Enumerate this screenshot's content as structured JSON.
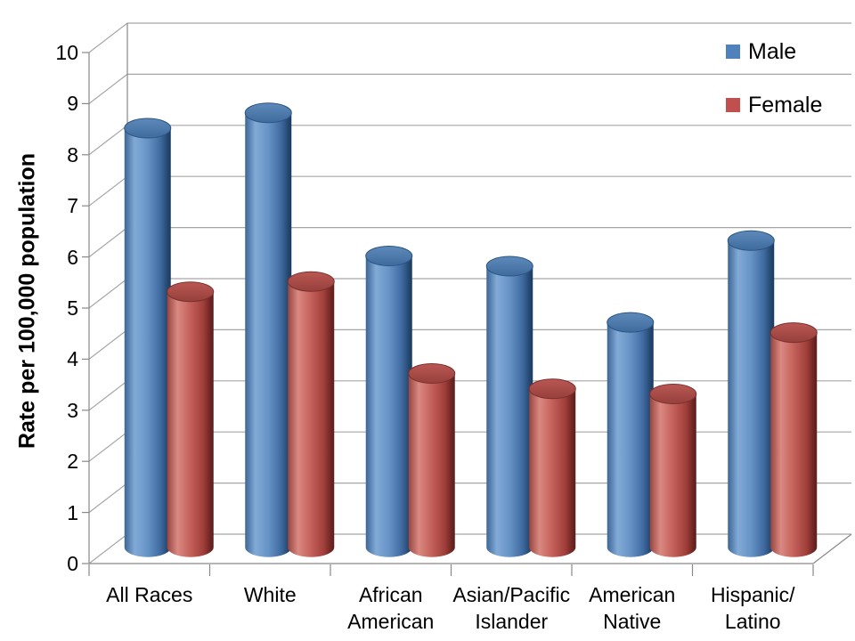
{
  "chart_data": {
    "type": "bar",
    "subtype": "3d-cylinder-clustered",
    "title": "",
    "ylabel": "Rate per 100,000 population",
    "xlabel": "",
    "ylim": [
      0,
      10
    ],
    "ytick_step": 1,
    "yticks": [
      "0",
      "1",
      "2",
      "3",
      "4",
      "5",
      "6",
      "7",
      "8",
      "9",
      "10"
    ],
    "grid": true,
    "legend_position": "top-right",
    "categories": [
      "All Races",
      "White",
      "African\nAmerican",
      "Asian/Pacific\nIslander",
      "American\nNative",
      "Hispanic/\nLatino"
    ],
    "series": [
      {
        "name": "Male",
        "color": "#4F81BD",
        "values": [
          8.2,
          8.5,
          5.7,
          5.5,
          4.4,
          6.0
        ]
      },
      {
        "name": "Female",
        "color": "#C0504D",
        "values": [
          5.0,
          5.2,
          3.4,
          3.1,
          3.0,
          4.2
        ]
      }
    ]
  },
  "legend": {
    "items": [
      {
        "label": "Male",
        "color": "#4F81BD"
      },
      {
        "label": "Female",
        "color": "#C0504D"
      }
    ]
  },
  "colors": {
    "male_body_main": "#4F81BD",
    "male_body_light": "#82AAD7",
    "male_body_dark": "#1A3A60",
    "male_top": "#4C7BAE",
    "female_body_main": "#C0504D",
    "female_body_light": "#DA8982",
    "female_body_dark": "#5A1E1C",
    "female_top": "#AA4A46",
    "gridline": "#A6A6A6",
    "axis_line": "#898989",
    "text": "#000000",
    "background": "#FFFFFF"
  }
}
